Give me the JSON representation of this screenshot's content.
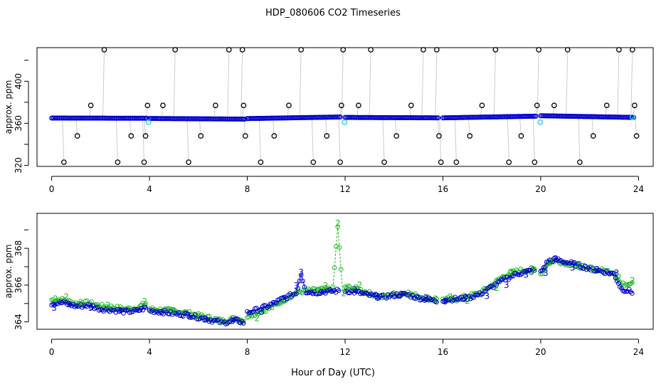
{
  "chart_data": {
    "title": "HDP_080606  CO2 Timeseries",
    "xlabel": "Hour of Day (UTC)",
    "colors": {
      "black": "#000000",
      "blue": "#0000cc",
      "cyan": "#33ccee",
      "green": "#22bb22",
      "grey": "#999999",
      "axis": "#000000"
    },
    "panels": [
      {
        "type": "scatter",
        "ylabel": "approx. ppm",
        "xlim": [
          -0.6,
          24.6
        ],
        "ylim": [
          319,
          432
        ],
        "xticks": [
          "0",
          "4",
          "8",
          "12",
          "16",
          "20",
          "24"
        ],
        "yticks": [
          "320",
          "360",
          "400"
        ],
        "baseline_segments": [
          {
            "x": [
              0.0,
              3.9
            ],
            "y": [
              365.0,
              364.8
            ],
            "color": "blue"
          },
          {
            "x": [
              4.0,
              7.9
            ],
            "y": [
              364.6,
              364.0
            ],
            "color": "blue"
          },
          {
            "x": [
              8.0,
              11.8
            ],
            "y": [
              364.5,
              366.0
            ],
            "color": "blue"
          },
          {
            "x": [
              12.0,
              15.8
            ],
            "y": [
              365.6,
              365.2
            ],
            "color": "blue"
          },
          {
            "x": [
              16.0,
              19.8
            ],
            "y": [
              365.2,
              366.8
            ],
            "color": "blue"
          },
          {
            "x": [
              20.0,
              23.8
            ],
            "y": [
              367.2,
              365.6
            ],
            "color": "blue"
          }
        ],
        "cyan_points": [
          {
            "x": 3.96,
            "y": 361
          },
          {
            "x": 11.98,
            "y": 361
          },
          {
            "x": 19.98,
            "y": 361
          },
          {
            "x": 23.75,
            "y": 366
          }
        ],
        "outliers_x": [
          0.5,
          1.05,
          1.6,
          2.15,
          2.7,
          3.25,
          3.78,
          3.84,
          3.92,
          4.55,
          5.05,
          5.6,
          6.1,
          6.7,
          7.25,
          7.8,
          7.85,
          7.92,
          8.55,
          9.1,
          9.7,
          10.2,
          10.7,
          11.25,
          11.8,
          11.85,
          11.92,
          12.55,
          13.05,
          13.6,
          14.1,
          14.7,
          15.2,
          15.75,
          15.84,
          15.92,
          16.55,
          17.1,
          17.6,
          18.15,
          18.7,
          19.2,
          19.75,
          19.85,
          19.92,
          20.55,
          21.1,
          21.6,
          22.15,
          22.7,
          23.2,
          23.75,
          23.84,
          23.92
        ],
        "outliers_y": [
          323,
          348,
          377,
          430,
          323,
          348,
          323,
          348,
          377,
          377,
          430,
          323,
          348,
          377,
          430,
          430,
          377,
          348,
          323,
          348,
          377,
          430,
          323,
          348,
          323,
          377,
          430,
          377,
          430,
          323,
          348,
          377,
          430,
          430,
          348,
          323,
          323,
          348,
          377,
          430,
          323,
          348,
          323,
          377,
          430,
          377,
          430,
          323,
          348,
          377,
          430,
          430,
          377,
          348
        ]
      },
      {
        "type": "line",
        "ylabel": "approx. ppm",
        "xlim": [
          -0.6,
          24.6
        ],
        "ylim": [
          363.6,
          369.9
        ],
        "xticks": [
          "0",
          "4",
          "8",
          "12",
          "16",
          "20",
          "24"
        ],
        "yticks": [
          "364",
          "366",
          "368"
        ],
        "marker_labels": {
          "blue": "3",
          "green": "2"
        },
        "series": [
          {
            "name": "series 3",
            "color": "blue",
            "segments": [
              {
                "x": [
                  0.0,
                  0.5,
                  1.0,
                  1.5,
                  2.0,
                  2.5,
                  3.0,
                  3.5,
                  3.9
                ],
                "y": [
                  365.0,
                  365.05,
                  364.85,
                  364.9,
                  364.7,
                  364.65,
                  364.55,
                  364.6,
                  364.8
                ]
              },
              {
                "x": [
                  4.0,
                  4.5,
                  5.0,
                  5.5,
                  6.0,
                  6.5,
                  7.0,
                  7.5,
                  7.9
                ],
                "y": [
                  364.6,
                  364.55,
                  364.45,
                  364.4,
                  364.25,
                  364.1,
                  363.95,
                  364.1,
                  363.95
                ]
              },
              {
                "x": [
                  8.0,
                  8.5,
                  9.0,
                  9.5,
                  10.0,
                  10.2,
                  10.4,
                  10.8,
                  11.2,
                  11.8
                ],
                "y": [
                  364.5,
                  364.7,
                  364.95,
                  365.3,
                  365.55,
                  366.6,
                  365.65,
                  365.6,
                  365.65,
                  365.7
                ]
              },
              {
                "x": [
                  12.0,
                  12.5,
                  13.0,
                  13.5,
                  14.0,
                  14.5,
                  15.0,
                  15.5,
                  15.8
                ],
                "y": [
                  365.7,
                  365.6,
                  365.45,
                  365.35,
                  365.45,
                  365.5,
                  365.3,
                  365.2,
                  365.1
                ]
              },
              {
                "x": [
                  16.0,
                  16.5,
                  17.0,
                  17.5,
                  18.0,
                  18.5,
                  19.0,
                  19.5,
                  19.8
                ],
                "y": [
                  365.2,
                  365.25,
                  365.3,
                  365.5,
                  365.9,
                  366.3,
                  366.6,
                  366.75,
                  366.8
                ]
              },
              {
                "x": [
                  20.0,
                  20.3,
                  20.6,
                  21.0,
                  21.5,
                  22.0,
                  22.5,
                  23.0,
                  23.3,
                  23.8
                ],
                "y": [
                  366.7,
                  367.3,
                  367.4,
                  367.25,
                  367.1,
                  366.9,
                  366.75,
                  366.6,
                  365.8,
                  365.6
                ]
              }
            ],
            "labels_x": [
              0.1,
              0.7,
              1.6,
              2.8,
              4.5,
              5.6,
              6.3,
              7.4,
              8.6,
              9.5,
              10.0,
              10.2,
              11.0,
              12.4,
              13.3,
              14.3,
              15.3,
              16.1,
              16.9,
              17.8,
              18.6,
              19.4,
              20.2,
              20.6,
              21.3,
              22.3,
              23.1
            ],
            "labels_y": [
              364.75,
              364.95,
              364.75,
              364.6,
              364.5,
              364.35,
              364.15,
              364.05,
              364.55,
              365.2,
              365.95,
              366.7,
              365.6,
              365.75,
              365.4,
              365.5,
              365.3,
              365.1,
              365.3,
              365.4,
              366.0,
              366.55,
              366.65,
              367.4,
              366.95,
              366.85,
              366.65
            ]
          },
          {
            "name": "series 2",
            "color": "green",
            "segments": [
              {
                "x": [
                  0.0,
                  0.5,
                  1.0,
                  1.5,
                  2.0,
                  2.5,
                  3.0,
                  3.5,
                  3.9
                ],
                "y": [
                  365.2,
                  365.2,
                  365.0,
                  365.05,
                  364.85,
                  364.8,
                  364.7,
                  364.75,
                  365.05
                ]
              },
              {
                "x": [
                  4.0,
                  4.5,
                  5.0,
                  5.5,
                  6.0,
                  6.5,
                  7.0,
                  7.5,
                  7.9
                ],
                "y": [
                  364.7,
                  364.65,
                  364.6,
                  364.5,
                  364.35,
                  364.2,
                  364.05,
                  364.2,
                  364.05
                ]
              },
              {
                "x": [
                  8.0,
                  8.5,
                  9.0,
                  9.5,
                  10.0,
                  10.5,
                  11.0,
                  11.5,
                  11.7,
                  11.9
                ],
                "y": [
                  364.3,
                  364.55,
                  364.8,
                  365.2,
                  365.6,
                  365.7,
                  365.75,
                  365.8,
                  369.2,
                  365.6
                ]
              },
              {
                "x": [
                  12.0,
                  12.5,
                  13.0,
                  13.5,
                  14.0,
                  14.5,
                  15.0,
                  15.5,
                  15.8
                ],
                "y": [
                  365.9,
                  365.8,
                  365.55,
                  365.35,
                  365.5,
                  365.55,
                  365.4,
                  365.25,
                  365.2
                ]
              },
              {
                "x": [
                  16.0,
                  16.5,
                  17.0,
                  17.5,
                  18.0,
                  18.5,
                  19.0,
                  19.5,
                  19.8
                ],
                "y": [
                  365.25,
                  365.2,
                  365.4,
                  365.55,
                  366.0,
                  366.5,
                  366.75,
                  366.85,
                  366.85
                ]
              },
              {
                "x": [
                  20.0,
                  20.3,
                  20.6,
                  21.0,
                  21.5,
                  22.0,
                  22.5,
                  23.0,
                  23.3,
                  23.8
                ],
                "y": [
                  366.6,
                  367.2,
                  367.35,
                  367.2,
                  367.05,
                  366.9,
                  366.8,
                  366.7,
                  366.0,
                  366.2
                ]
              }
            ],
            "labels_x": [
              0.15,
              0.6,
              1.2,
              2.3,
              3.8,
              5.0,
              6.0,
              6.9,
              8.4,
              9.4,
              10.9,
              11.2,
              11.7,
              11.95,
              12.6,
              13.6,
              14.6,
              15.7,
              16.3,
              17.0,
              18.2,
              18.8,
              19.7,
              20.4,
              21.5,
              22.1,
              23.2,
              23.75
            ],
            "labels_y": [
              365.25,
              365.35,
              365.05,
              364.9,
              365.1,
              364.6,
              364.3,
              364.0,
              364.2,
              365.15,
              365.7,
              365.95,
              369.35,
              365.55,
              366.0,
              365.35,
              365.55,
              365.25,
              365.35,
              365.15,
              365.85,
              366.7,
              366.8,
              367.25,
              367.1,
              366.9,
              366.4,
              366.25
            ]
          }
        ]
      }
    ]
  }
}
